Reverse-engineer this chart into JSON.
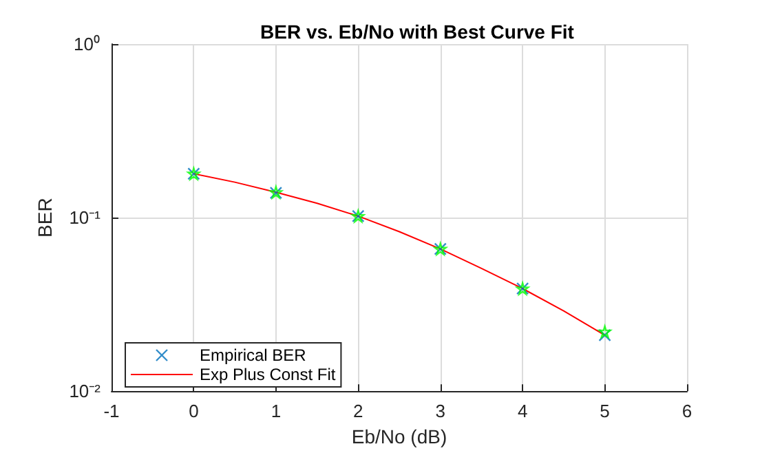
{
  "chart_data": {
    "type": "scatter",
    "title": "BER vs. Eb/No with Best Curve Fit",
    "xlabel": "Eb/No (dB)",
    "ylabel": "BER",
    "xlim": [
      -1,
      6
    ],
    "xticks": [
      -1,
      0,
      1,
      2,
      3,
      4,
      5,
      6
    ],
    "ylim": [
      0.01,
      1
    ],
    "yticks": [
      {
        "value": 0.01,
        "label": "10⁻²"
      },
      {
        "value": 0.1,
        "label": "10⁻¹"
      },
      {
        "value": 1,
        "label": "10⁰"
      }
    ],
    "log": "y",
    "grid": true,
    "legend": "bottom left",
    "series": [
      {
        "name": "Empirical BER",
        "marker": "cross",
        "color": "#0072bd",
        "x": [
          0,
          1,
          2,
          3,
          4,
          5
        ],
        "values": [
          0.179,
          0.139,
          0.102,
          0.066,
          0.039,
          0.021
        ]
      },
      {
        "type": "scatter",
        "marker": "star",
        "color": "#00ff00",
        "x": [
          0,
          1,
          2,
          3,
          4,
          5
        ],
        "values": [
          0.179,
          0.14,
          0.102,
          0.066,
          0.039,
          0.022
        ]
      },
      {
        "name": "Exp Plus Const Fit",
        "type": "line",
        "marker": "none",
        "line_style": "solid",
        "color": "#ff0000",
        "x": [
          0,
          0.5,
          1,
          1.5,
          2,
          2.5,
          3,
          3.5,
          4,
          4.5,
          5
        ],
        "values": [
          0.179,
          0.16,
          0.14,
          0.121,
          0.102,
          0.083,
          0.066,
          0.051,
          0.039,
          0.029,
          0.021
        ]
      }
    ]
  }
}
